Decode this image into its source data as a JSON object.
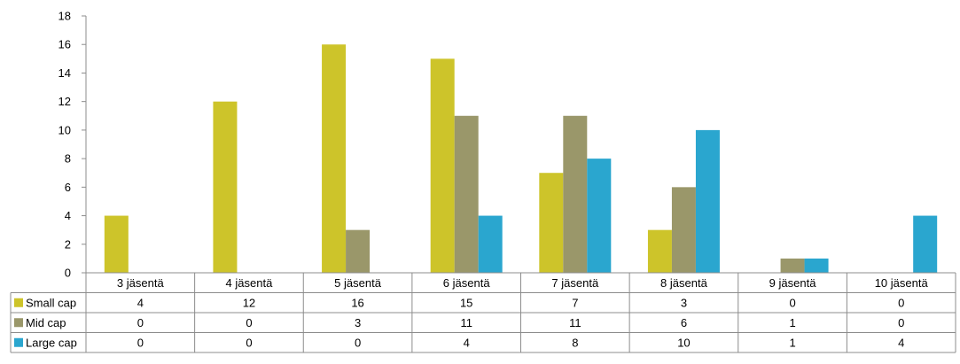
{
  "chart_data": {
    "type": "bar",
    "categories": [
      "3 jäsentä",
      "4 jäsentä",
      "5 jäsentä",
      "6 jäsentä",
      "7 jäsentä",
      "8 jäsentä",
      "9 jäsentä",
      "10 jäsentä"
    ],
    "series": [
      {
        "name": "Small cap",
        "color": "#cdc42a",
        "values": [
          4,
          12,
          16,
          15,
          7,
          3,
          0,
          0
        ]
      },
      {
        "name": "Mid cap",
        "color": "#9a976a",
        "values": [
          0,
          0,
          3,
          11,
          11,
          6,
          1,
          0
        ]
      },
      {
        "name": "Large cap",
        "color": "#2aa6cf",
        "values": [
          0,
          0,
          0,
          4,
          8,
          10,
          1,
          4
        ]
      }
    ],
    "ylim": [
      0,
      18
    ],
    "yticks": [
      0,
      2,
      4,
      6,
      8,
      10,
      12,
      14,
      16,
      18
    ],
    "grid": false,
    "legend": "data-table-left"
  }
}
